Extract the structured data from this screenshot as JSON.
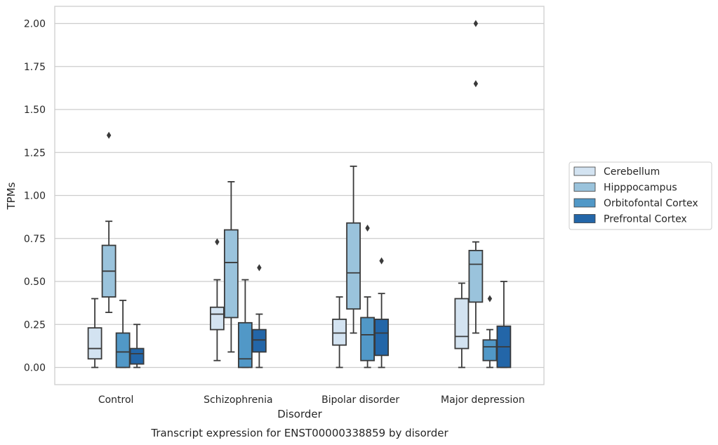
{
  "chart_data": {
    "type": "box",
    "caption": "Transcript expression for ENST00000338859 by disorder",
    "xlabel": "Disorder",
    "ylabel": "TPMs",
    "ylim": [
      -0.1,
      2.1
    ],
    "yticks": [
      0.0,
      0.25,
      0.5,
      0.75,
      1.0,
      1.25,
      1.5,
      1.75,
      2.0
    ],
    "ytick_labels": [
      "0.00",
      "0.25",
      "0.50",
      "0.75",
      "1.00",
      "1.25",
      "1.50",
      "1.75",
      "2.00"
    ],
    "grid": "horizontal",
    "legend_position": "right",
    "categories": [
      "Control",
      "Schizophrenia",
      "Bipolar disorder",
      "Major depression"
    ],
    "series": [
      {
        "name": "Cerebellum",
        "color": "#d3e3f1",
        "boxes": [
          {
            "whisker_low": 0.0,
            "q1": 0.05,
            "median": 0.11,
            "q3": 0.23,
            "whisker_high": 0.4,
            "outliers": []
          },
          {
            "whisker_low": 0.04,
            "q1": 0.22,
            "median": 0.31,
            "q3": 0.35,
            "whisker_high": 0.51,
            "outliers": [
              0.73
            ]
          },
          {
            "whisker_low": 0.0,
            "q1": 0.13,
            "median": 0.2,
            "q3": 0.28,
            "whisker_high": 0.41,
            "outliers": []
          },
          {
            "whisker_low": 0.0,
            "q1": 0.11,
            "median": 0.18,
            "q3": 0.4,
            "whisker_high": 0.49,
            "outliers": []
          }
        ]
      },
      {
        "name": "Hipppocampus",
        "color": "#9ac3dc",
        "boxes": [
          {
            "whisker_low": 0.32,
            "q1": 0.41,
            "median": 0.56,
            "q3": 0.71,
            "whisker_high": 0.85,
            "outliers": [
              1.35
            ]
          },
          {
            "whisker_low": 0.09,
            "q1": 0.29,
            "median": 0.61,
            "q3": 0.8,
            "whisker_high": 1.08,
            "outliers": []
          },
          {
            "whisker_low": 0.2,
            "q1": 0.34,
            "median": 0.55,
            "q3": 0.84,
            "whisker_high": 1.17,
            "outliers": []
          },
          {
            "whisker_low": 0.2,
            "q1": 0.38,
            "median": 0.6,
            "q3": 0.68,
            "whisker_high": 0.73,
            "outliers": [
              1.65,
              2.0
            ]
          }
        ]
      },
      {
        "name": "Orbitofontal Cortex",
        "color": "#5198c7",
        "boxes": [
          {
            "whisker_low": 0.0,
            "q1": 0.0,
            "median": 0.09,
            "q3": 0.2,
            "whisker_high": 0.39,
            "outliers": []
          },
          {
            "whisker_low": 0.0,
            "q1": 0.0,
            "median": 0.05,
            "q3": 0.26,
            "whisker_high": 0.51,
            "outliers": []
          },
          {
            "whisker_low": 0.0,
            "q1": 0.04,
            "median": 0.19,
            "q3": 0.29,
            "whisker_high": 0.41,
            "outliers": [
              0.81
            ]
          },
          {
            "whisker_low": 0.0,
            "q1": 0.04,
            "median": 0.12,
            "q3": 0.16,
            "whisker_high": 0.22,
            "outliers": [
              0.4
            ]
          }
        ]
      },
      {
        "name": "Prefrontal Cortex",
        "color": "#2366a8",
        "boxes": [
          {
            "whisker_low": 0.0,
            "q1": 0.02,
            "median": 0.08,
            "q3": 0.11,
            "whisker_high": 0.25,
            "outliers": []
          },
          {
            "whisker_low": 0.0,
            "q1": 0.09,
            "median": 0.16,
            "q3": 0.22,
            "whisker_high": 0.31,
            "outliers": [
              0.58
            ]
          },
          {
            "whisker_low": 0.0,
            "q1": 0.07,
            "median": 0.2,
            "q3": 0.28,
            "whisker_high": 0.43,
            "outliers": [
              0.62
            ]
          },
          {
            "whisker_low": 0.0,
            "q1": 0.0,
            "median": 0.12,
            "q3": 0.24,
            "whisker_high": 0.5,
            "outliers": []
          }
        ]
      }
    ]
  }
}
